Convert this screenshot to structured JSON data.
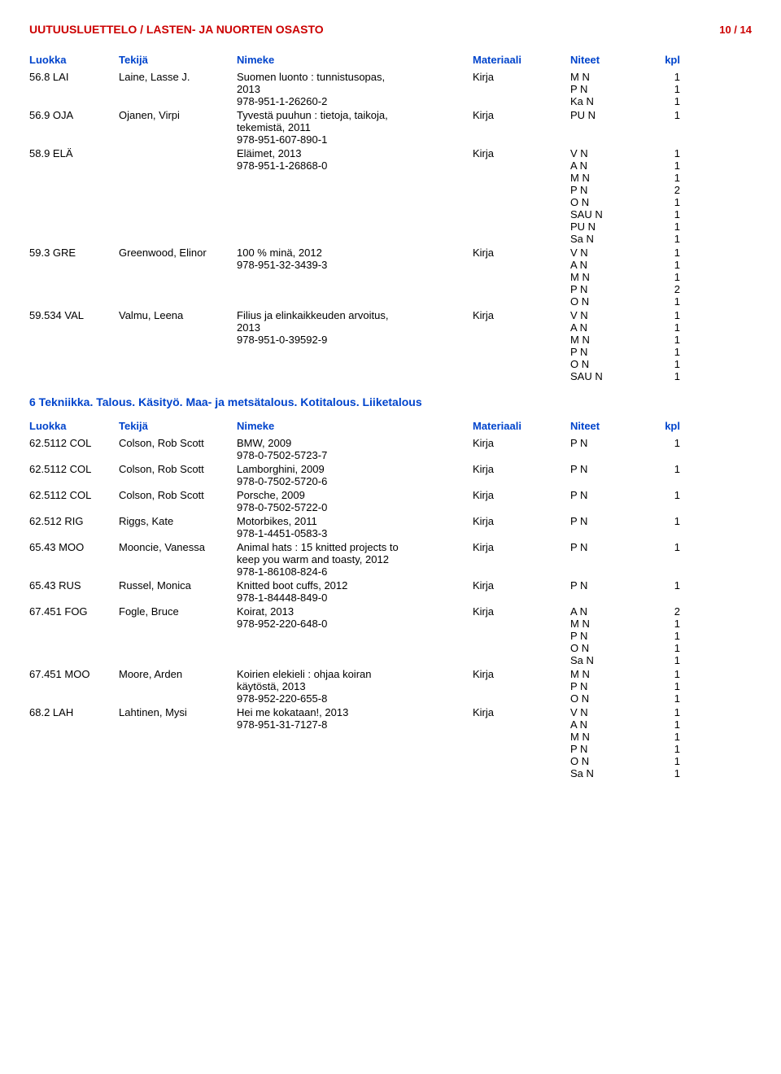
{
  "header": {
    "title": "UUTUUSLUETTELO / LASTEN- JA NUORTEN OSASTO",
    "page": "10 / 14"
  },
  "columns": {
    "luokka": "Luokka",
    "tekija": "Tekijä",
    "nimeke": "Nimeke",
    "materiaali": "Materiaali",
    "niteet": "Niteet",
    "kpl": "kpl"
  },
  "section1": {
    "entries": [
      {
        "luokka": "56.8 LAI",
        "tekija": "Laine, Lasse J.",
        "nimeke": [
          "Suomen luonto : tunnistusopas,",
          "2013",
          "978-951-1-26260-2"
        ],
        "materiaali": "Kirja",
        "niteet": [
          {
            "label": "M N",
            "kpl": "1"
          },
          {
            "label": "P N",
            "kpl": "1"
          },
          {
            "label": "Ka N",
            "kpl": "1"
          }
        ]
      },
      {
        "luokka": "56.9 OJA",
        "tekija": "Ojanen, Virpi",
        "nimeke": [
          "Tyvestä puuhun : tietoja, taikoja,",
          "tekemistä, 2011",
          "978-951-607-890-1"
        ],
        "materiaali": "Kirja",
        "niteet": [
          {
            "label": "PU N",
            "kpl": "1"
          }
        ]
      },
      {
        "luokka": "58.9 ELÄ",
        "tekija": "",
        "nimeke": [
          "Eläimet, 2013",
          "978-951-1-26868-0"
        ],
        "materiaali": "Kirja",
        "niteet": [
          {
            "label": "V N",
            "kpl": "1"
          },
          {
            "label": "A N",
            "kpl": "1"
          },
          {
            "label": "M N",
            "kpl": "1"
          },
          {
            "label": "P N",
            "kpl": "2"
          },
          {
            "label": "O N",
            "kpl": "1"
          },
          {
            "label": "SAU N",
            "kpl": "1"
          },
          {
            "label": "PU N",
            "kpl": "1"
          },
          {
            "label": "Sa N",
            "kpl": "1"
          }
        ]
      },
      {
        "luokka": "59.3 GRE",
        "tekija": "Greenwood, Elinor",
        "nimeke": [
          "100 % minä, 2012",
          "978-951-32-3439-3"
        ],
        "materiaali": "Kirja",
        "niteet": [
          {
            "label": "V N",
            "kpl": "1"
          },
          {
            "label": "A N",
            "kpl": "1"
          },
          {
            "label": "M N",
            "kpl": "1"
          },
          {
            "label": "P N",
            "kpl": "2"
          },
          {
            "label": "O N",
            "kpl": "1"
          }
        ]
      },
      {
        "luokka": "59.534 VAL",
        "tekija": "Valmu, Leena",
        "nimeke": [
          "Filius ja elinkaikkeuden arvoitus,",
          "2013",
          "978-951-0-39592-9"
        ],
        "materiaali": "Kirja",
        "niteet": [
          {
            "label": "V N",
            "kpl": "1"
          },
          {
            "label": "A N",
            "kpl": "1"
          },
          {
            "label": "M N",
            "kpl": "1"
          },
          {
            "label": "P N",
            "kpl": "1"
          },
          {
            "label": "O N",
            "kpl": "1"
          },
          {
            "label": "SAU N",
            "kpl": "1"
          }
        ]
      }
    ]
  },
  "section2": {
    "title": "6 Tekniikka. Talous. Käsityö. Maa- ja metsätalous. Kotitalous. Liiketalous",
    "entries": [
      {
        "luokka": "62.5112 COL",
        "tekija": "Colson, Rob Scott",
        "nimeke": [
          "BMW, 2009",
          "978-0-7502-5723-7"
        ],
        "materiaali": "Kirja",
        "niteet": [
          {
            "label": "P N",
            "kpl": "1"
          }
        ]
      },
      {
        "luokka": "62.5112 COL",
        "tekija": "Colson, Rob Scott",
        "nimeke": [
          "Lamborghini, 2009",
          "978-0-7502-5720-6"
        ],
        "materiaali": "Kirja",
        "niteet": [
          {
            "label": "P N",
            "kpl": "1"
          }
        ]
      },
      {
        "luokka": "62.5112 COL",
        "tekija": "Colson, Rob Scott",
        "nimeke": [
          "Porsche, 2009",
          "978-0-7502-5722-0"
        ],
        "materiaali": "Kirja",
        "niteet": [
          {
            "label": "P N",
            "kpl": "1"
          }
        ]
      },
      {
        "luokka": "62.512 RIG",
        "tekija": "Riggs, Kate",
        "nimeke": [
          "Motorbikes, 2011",
          "978-1-4451-0583-3"
        ],
        "materiaali": "Kirja",
        "niteet": [
          {
            "label": "P N",
            "kpl": "1"
          }
        ]
      },
      {
        "luokka": "65.43 MOO",
        "tekija": "Mooncie, Vanessa",
        "nimeke": [
          "Animal hats : 15 knitted projects to",
          "keep you warm and toasty, 2012",
          "978-1-86108-824-6"
        ],
        "materiaali": "Kirja",
        "niteet": [
          {
            "label": "P N",
            "kpl": "1"
          }
        ]
      },
      {
        "luokka": "65.43 RUS",
        "tekija": "Russel, Monica",
        "nimeke": [
          "Knitted boot cuffs, 2012",
          "978-1-84448-849-0"
        ],
        "materiaali": "Kirja",
        "niteet": [
          {
            "label": "P N",
            "kpl": "1"
          }
        ]
      },
      {
        "luokka": "67.451 FOG",
        "tekija": "Fogle, Bruce",
        "nimeke": [
          "Koirat, 2013",
          "978-952-220-648-0"
        ],
        "materiaali": "Kirja",
        "niteet": [
          {
            "label": "A N",
            "kpl": "2"
          },
          {
            "label": "M N",
            "kpl": "1"
          },
          {
            "label": "P N",
            "kpl": "1"
          },
          {
            "label": "O N",
            "kpl": "1"
          },
          {
            "label": "Sa N",
            "kpl": "1"
          }
        ]
      },
      {
        "luokka": "67.451 MOO",
        "tekija": "Moore, Arden",
        "nimeke": [
          "Koirien elekieli : ohjaa koiran",
          "käytöstä, 2013",
          "978-952-220-655-8"
        ],
        "materiaali": "Kirja",
        "niteet": [
          {
            "label": "M N",
            "kpl": "1"
          },
          {
            "label": "P N",
            "kpl": "1"
          },
          {
            "label": "O N",
            "kpl": "1"
          }
        ]
      },
      {
        "luokka": "68.2 LAH",
        "tekija": "Lahtinen, Mysi",
        "nimeke": [
          "Hei me kokataan!, 2013",
          "978-951-31-7127-8"
        ],
        "materiaali": "Kirja",
        "niteet": [
          {
            "label": "V N",
            "kpl": "1"
          },
          {
            "label": "A N",
            "kpl": "1"
          },
          {
            "label": "M N",
            "kpl": "1"
          },
          {
            "label": "P N",
            "kpl": "1"
          },
          {
            "label": "O N",
            "kpl": "1"
          },
          {
            "label": "Sa N",
            "kpl": "1"
          }
        ]
      }
    ]
  }
}
